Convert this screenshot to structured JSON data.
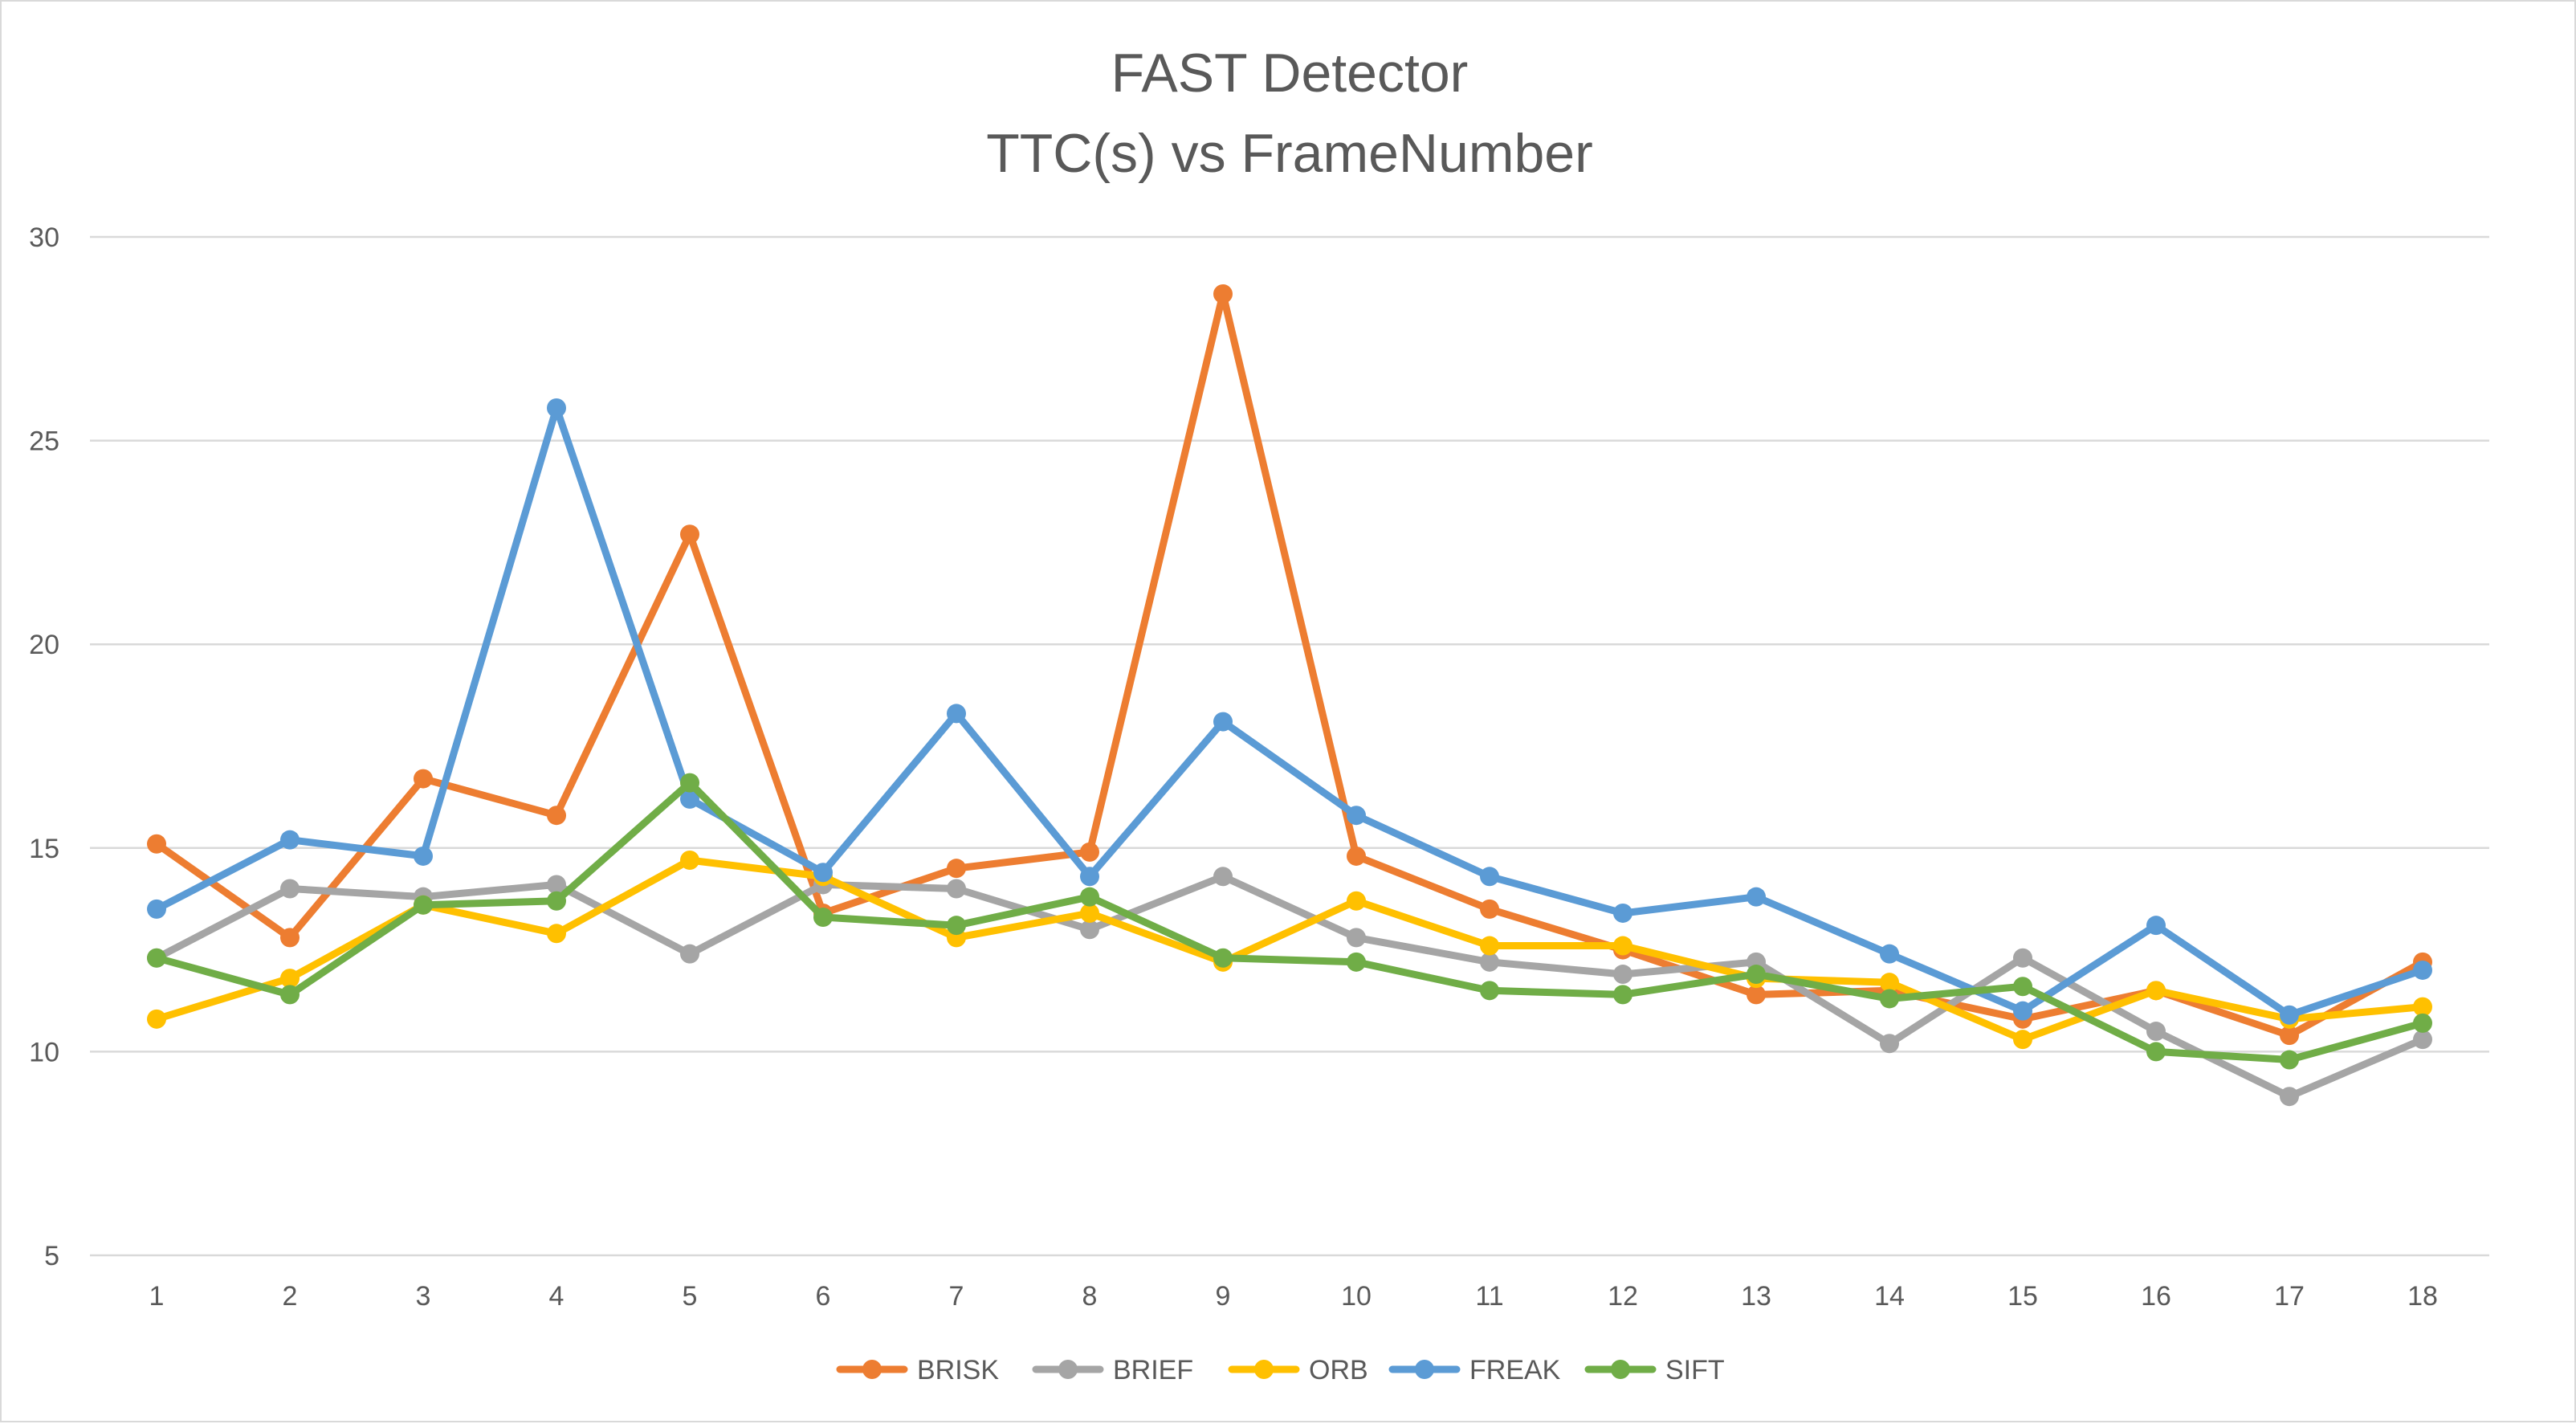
{
  "chart_data": {
    "type": "line",
    "title": [
      "FAST Detector",
      "TTC(s) vs FrameNumber"
    ],
    "xlabel": "",
    "ylabel": "",
    "categories": [
      "1",
      "2",
      "3",
      "4",
      "5",
      "6",
      "7",
      "8",
      "9",
      "10",
      "11",
      "12",
      "13",
      "14",
      "15",
      "16",
      "17",
      "18"
    ],
    "ylim": [
      5,
      30
    ],
    "yticks": [
      5,
      10,
      15,
      20,
      25,
      30
    ],
    "grid": true,
    "legend_position": "bottom",
    "series": [
      {
        "name": "BRISK",
        "color": "#ED7D31",
        "values": [
          15.1,
          12.8,
          16.7,
          15.8,
          22.7,
          13.4,
          14.5,
          14.9,
          28.6,
          14.8,
          13.5,
          12.5,
          11.4,
          11.5,
          10.8,
          11.5,
          10.4,
          12.2
        ]
      },
      {
        "name": "BRIEF",
        "color": "#A5A5A5",
        "values": [
          12.3,
          14.0,
          13.8,
          14.1,
          12.4,
          14.1,
          14.0,
          13.0,
          14.3,
          12.8,
          12.2,
          11.9,
          12.2,
          10.2,
          12.3,
          10.5,
          8.9,
          10.3
        ]
      },
      {
        "name": "ORB",
        "color": "#FFC000",
        "values": [
          10.8,
          11.8,
          13.6,
          12.9,
          14.7,
          14.3,
          12.8,
          13.4,
          12.2,
          13.7,
          12.6,
          12.6,
          11.8,
          11.7,
          10.3,
          11.5,
          10.8,
          11.1
        ]
      },
      {
        "name": "FREAK",
        "color": "#5B9BD5",
        "values": [
          13.5,
          15.2,
          14.8,
          25.8,
          16.2,
          14.4,
          18.3,
          14.3,
          18.1,
          15.8,
          14.3,
          13.4,
          13.8,
          12.4,
          11.0,
          13.1,
          10.9,
          12.0
        ]
      },
      {
        "name": "SIFT",
        "color": "#70AD47",
        "values": [
          12.3,
          11.4,
          13.6,
          13.7,
          16.6,
          13.3,
          13.1,
          13.8,
          12.3,
          12.2,
          11.5,
          11.4,
          11.9,
          11.3,
          11.6,
          10.0,
          9.8,
          10.7
        ]
      }
    ]
  }
}
